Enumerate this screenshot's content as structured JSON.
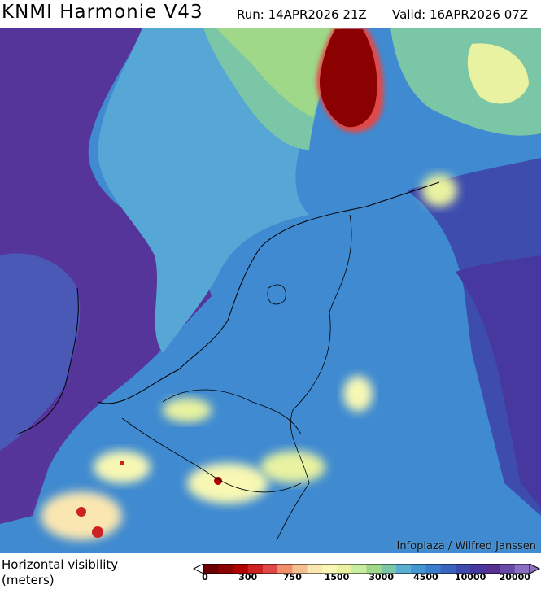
{
  "header": {
    "title": "KNMI Harmonie V43",
    "run": "Run: 14APR2026 21Z",
    "valid": "Valid: 16APR2026 07Z"
  },
  "map": {
    "credit": "Infoplaza / Wilfred Janssen",
    "region": "Netherlands and surrounding North Sea"
  },
  "legend": {
    "title_line1": "Horizontal visibility",
    "title_line2": "(meters)",
    "colors": [
      "#6b0000",
      "#8b0000",
      "#b00000",
      "#cc2222",
      "#e04848",
      "#f0906a",
      "#f5c090",
      "#fae6b0",
      "#f8f8b4",
      "#e8f2a0",
      "#c8eca0",
      "#9ed888",
      "#7cc6a8",
      "#5aaed0",
      "#4496d0",
      "#3a7ecc",
      "#3a64be",
      "#3e4cae",
      "#46389e",
      "#583090",
      "#6a4aa8",
      "#8a70c0"
    ],
    "ticks": [
      "0",
      "300",
      "750",
      "1500",
      "3000",
      "4500",
      "10000",
      "20000"
    ]
  }
}
